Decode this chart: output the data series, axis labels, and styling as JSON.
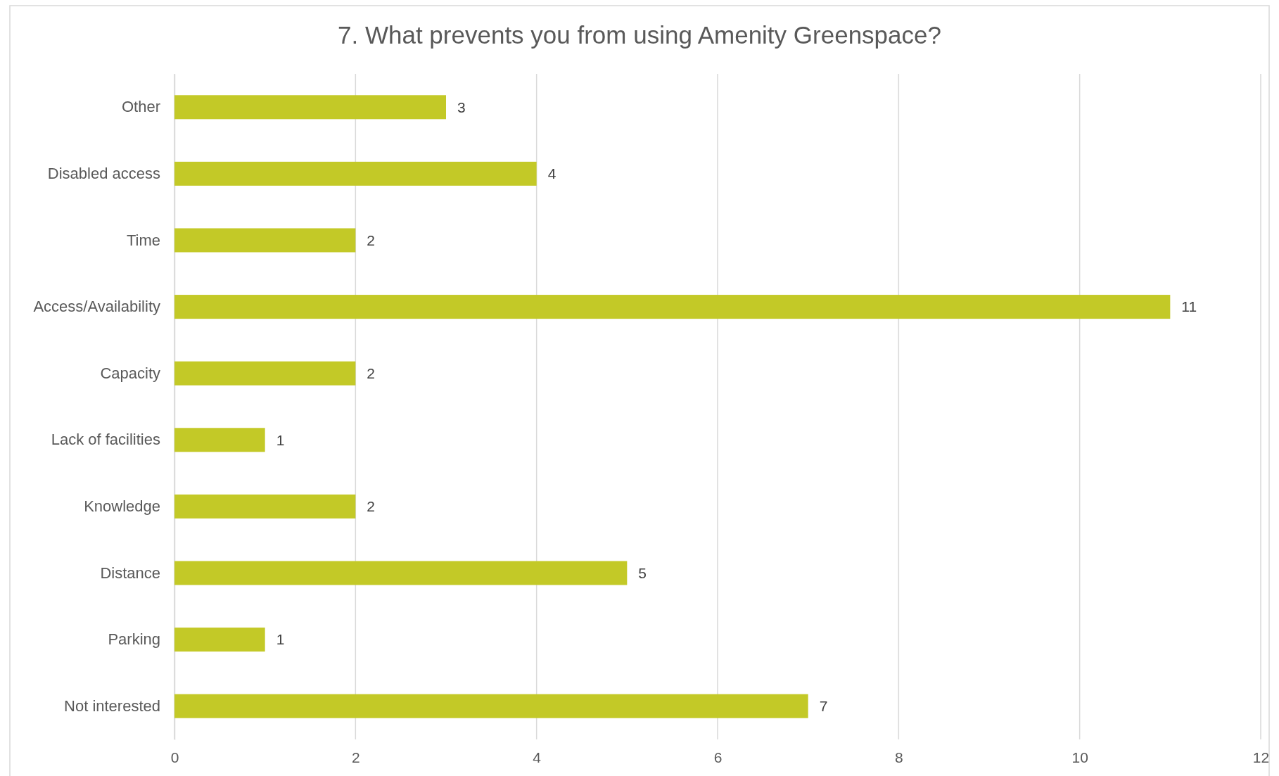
{
  "chart_data": {
    "type": "bar",
    "orientation": "horizontal",
    "title": "7. What prevents you from using Amenity Greenspace?",
    "categories": [
      "Other",
      "Disabled access",
      "Time",
      "Access/Availability",
      "Capacity",
      "Lack of facilities",
      "Knowledge",
      "Distance",
      "Parking",
      "Not interested"
    ],
    "values": [
      3,
      4,
      2,
      11,
      2,
      1,
      2,
      5,
      1,
      7
    ],
    "color": "#c3c927",
    "xlim": [
      0,
      12
    ],
    "xticks": [
      0,
      2,
      4,
      6,
      8,
      10,
      12
    ],
    "grid": "x",
    "data_labels": true
  }
}
